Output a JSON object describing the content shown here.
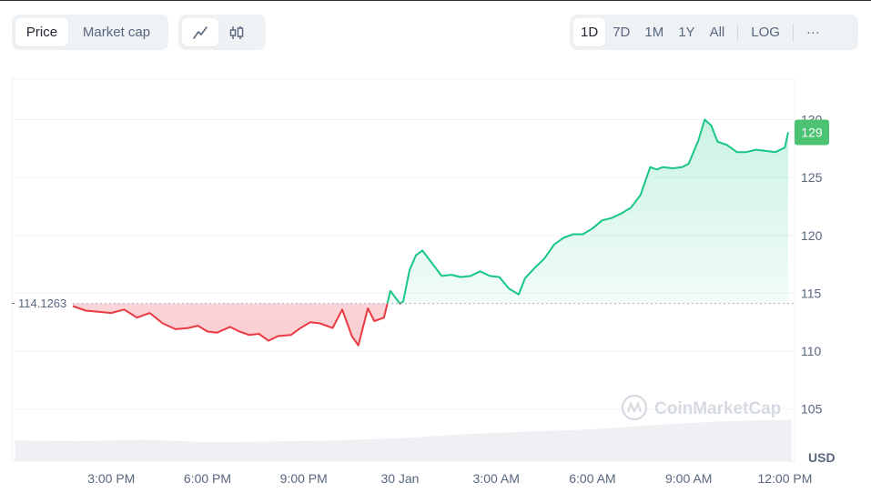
{
  "toolbar": {
    "type_tabs": [
      "Price",
      "Market cap"
    ],
    "active_type": "Price",
    "view_icons": [
      "line-chart-icon",
      "candlestick-icon"
    ],
    "ranges": [
      "1D",
      "7D",
      "1M",
      "1Y",
      "All"
    ],
    "active_range": "1D",
    "log_label": "LOG",
    "more_label": "···"
  },
  "watermark": "CoinMarketCap",
  "colors": {
    "up": "#16c784",
    "down": "#ea3943",
    "price_tag_bg": "#4cc372"
  },
  "chart_data": {
    "type": "line",
    "ylabel": "USD",
    "ylim": [
      100.5,
      133.5
    ],
    "yticks": [
      105,
      110,
      115,
      120,
      125,
      130
    ],
    "x_tick_labels": [
      "3:00 PM",
      "6:00 PM",
      "9:00 PM",
      "30 Jan",
      "3:00 AM",
      "6:00 AM",
      "9:00 AM",
      "12:00 PM"
    ],
    "xlim_hours": [
      11.9,
      36.3
    ],
    "x_tick_hours": [
      15,
      18,
      21,
      24,
      27,
      30,
      33,
      36
    ],
    "baseline_price": "114.1263",
    "baseline_value": 114.1263,
    "current_price_label": "129",
    "series": [
      {
        "x_hours": [
          13.8,
          14.2,
          14.6,
          15.0,
          15.4,
          15.8,
          16.2,
          16.6,
          17.0,
          17.4,
          17.7,
          18.0,
          18.3,
          18.7,
          19.0,
          19.3,
          19.6,
          19.9,
          20.2,
          20.6,
          20.9,
          21.2,
          21.5,
          21.9,
          22.2,
          22.5,
          22.7,
          23.0,
          23.2,
          23.5,
          23.7,
          24.0,
          24.1,
          24.3,
          24.5,
          24.7,
          25.0,
          25.3,
          25.6,
          25.9,
          26.2,
          26.5,
          26.8,
          27.1,
          27.4,
          27.7,
          27.9,
          28.2,
          28.5,
          28.8,
          29.1,
          29.4,
          29.7,
          30.0,
          30.3,
          30.6,
          30.9,
          31.2,
          31.5,
          31.8,
          32.0,
          32.2,
          32.5,
          32.8,
          33.0,
          33.3,
          33.5,
          33.7,
          33.9,
          34.2,
          34.5,
          34.8,
          35.1,
          35.4,
          35.7,
          36.0,
          36.1
        ],
        "values": [
          113.9,
          113.5,
          113.4,
          113.3,
          113.6,
          112.9,
          113.3,
          112.4,
          111.9,
          112.0,
          112.2,
          111.7,
          111.6,
          112.1,
          111.7,
          111.4,
          111.5,
          110.9,
          111.3,
          111.4,
          112.0,
          112.5,
          112.4,
          112.0,
          113.6,
          111.3,
          110.5,
          113.7,
          112.6,
          112.9,
          115.2,
          114.1,
          114.3,
          117.0,
          118.3,
          118.7,
          117.6,
          116.5,
          116.6,
          116.4,
          116.5,
          116.9,
          116.5,
          116.4,
          115.4,
          114.9,
          116.3,
          117.2,
          118.0,
          119.2,
          119.8,
          120.1,
          120.1,
          120.6,
          121.3,
          121.5,
          121.9,
          122.4,
          123.5,
          125.9,
          125.7,
          125.9,
          125.8,
          125.9,
          126.2,
          128.2,
          130.0,
          129.5,
          128.1,
          127.8,
          127.2,
          127.2,
          127.4,
          127.3,
          127.2,
          127.6,
          128.9
        ]
      }
    ],
    "volume": {
      "x_hours": [
        12.0,
        14,
        16,
        18,
        20,
        22,
        24,
        26,
        28,
        30,
        32,
        34,
        36.2
      ],
      "values": [
        0.6,
        0.58,
        0.62,
        0.55,
        0.57,
        0.6,
        0.66,
        0.78,
        0.86,
        0.92,
        1.05,
        1.15,
        1.2
      ]
    },
    "grid": true
  }
}
